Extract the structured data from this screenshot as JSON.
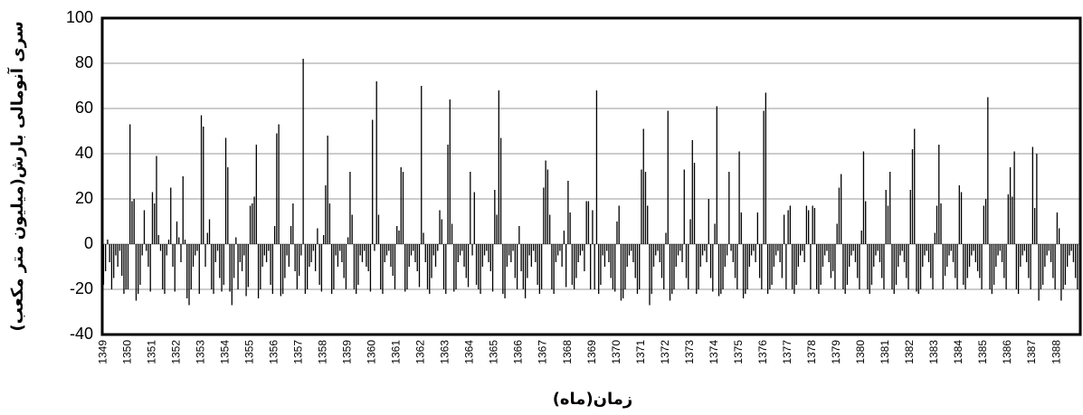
{
  "chart_data": {
    "type": "bar",
    "y_label": "سری آنومالی بارش(میلیون متر مکعب)",
    "x_label": "زمان(ماه)",
    "color": "#000000",
    "ylim": [
      -40,
      100
    ],
    "yticks": [
      -40,
      -20,
      0,
      20,
      40,
      60,
      80,
      100
    ],
    "grid": true,
    "categories": [
      "1349",
      null,
      null,
      null,
      null,
      null,
      null,
      null,
      null,
      null,
      null,
      null,
      "1350",
      null,
      null,
      null,
      null,
      null,
      null,
      null,
      null,
      null,
      null,
      null,
      "1351",
      null,
      null,
      null,
      null,
      null,
      null,
      null,
      null,
      null,
      null,
      null,
      "1352",
      null,
      null,
      null,
      null,
      null,
      null,
      null,
      null,
      null,
      null,
      null,
      "1353",
      null,
      null,
      null,
      null,
      null,
      null,
      null,
      null,
      null,
      null,
      null,
      "1354",
      null,
      null,
      null,
      null,
      null,
      null,
      null,
      null,
      null,
      null,
      null,
      "1355",
      null,
      null,
      null,
      null,
      null,
      null,
      null,
      null,
      null,
      null,
      null,
      "1356",
      null,
      null,
      null,
      null,
      null,
      null,
      null,
      null,
      null,
      null,
      null,
      "1357",
      null,
      null,
      null,
      null,
      null,
      null,
      null,
      null,
      null,
      null,
      null,
      "1358",
      null,
      null,
      null,
      null,
      null,
      null,
      null,
      null,
      null,
      null,
      null,
      "1359",
      null,
      null,
      null,
      null,
      null,
      null,
      null,
      null,
      null,
      null,
      null,
      "1360",
      null,
      null,
      null,
      null,
      null,
      null,
      null,
      null,
      null,
      null,
      null,
      "1361",
      null,
      null,
      null,
      null,
      null,
      null,
      null,
      null,
      null,
      null,
      null,
      "1362",
      null,
      null,
      null,
      null,
      null,
      null,
      null,
      null,
      null,
      null,
      null,
      "1363",
      null,
      null,
      null,
      null,
      null,
      null,
      null,
      null,
      null,
      null,
      null,
      "1364",
      null,
      null,
      null,
      null,
      null,
      null,
      null,
      null,
      null,
      null,
      null,
      "1365",
      null,
      null,
      null,
      null,
      null,
      null,
      null,
      null,
      null,
      null,
      null,
      "1366",
      null,
      null,
      null,
      null,
      null,
      null,
      null,
      null,
      null,
      null,
      null,
      "1367",
      null,
      null,
      null,
      null,
      null,
      null,
      null,
      null,
      null,
      null,
      null,
      "1368",
      null,
      null,
      null,
      null,
      null,
      null,
      null,
      null,
      null,
      null,
      null,
      "1369",
      null,
      null,
      null,
      null,
      null,
      null,
      null,
      null,
      null,
      null,
      null,
      "1370",
      null,
      null,
      null,
      null,
      null,
      null,
      null,
      null,
      null,
      null,
      null,
      "1371",
      null,
      null,
      null,
      null,
      null,
      null,
      null,
      null,
      null,
      null,
      null,
      "1372",
      null,
      null,
      null,
      null,
      null,
      null,
      null,
      null,
      null,
      null,
      null,
      "1373",
      null,
      null,
      null,
      null,
      null,
      null,
      null,
      null,
      null,
      null,
      null,
      "1374",
      null,
      null,
      null,
      null,
      null,
      null,
      null,
      null,
      null,
      null,
      null,
      "1375",
      null,
      null,
      null,
      null,
      null,
      null,
      null,
      null,
      null,
      null,
      null,
      "1376",
      null,
      null,
      null,
      null,
      null,
      null,
      null,
      null,
      null,
      null,
      null,
      "1377",
      null,
      null,
      null,
      null,
      null,
      null,
      null,
      null,
      null,
      null,
      null,
      "1378",
      null,
      null,
      null,
      null,
      null,
      null,
      null,
      null,
      null,
      null,
      null,
      "1379",
      null,
      null,
      null,
      null,
      null,
      null,
      null,
      null,
      null,
      null,
      null,
      "1380",
      null,
      null,
      null,
      null,
      null,
      null,
      null,
      null,
      null,
      null,
      null,
      "1381",
      null,
      null,
      null,
      null,
      null,
      null,
      null,
      null,
      null,
      null,
      null,
      "1382",
      null,
      null,
      null,
      null,
      null,
      null,
      null,
      null,
      null,
      null,
      null,
      "1383",
      null,
      null,
      null,
      null,
      null,
      null,
      null,
      null,
      null,
      null,
      null,
      "1384",
      null,
      null,
      null,
      null,
      null,
      null,
      null,
      null,
      null,
      null,
      null,
      "1385",
      null,
      null,
      null,
      null,
      null,
      null,
      null,
      null,
      null,
      null,
      null,
      "1386",
      null,
      null,
      null,
      null,
      null,
      null,
      null,
      null,
      null,
      null,
      null,
      "1387",
      null,
      null,
      null,
      null,
      null,
      null,
      null,
      null,
      null,
      null,
      null,
      "1388",
      null,
      null,
      null,
      null,
      null,
      null,
      null,
      null,
      null,
      null,
      null
    ],
    "values": [
      -18,
      -12,
      2,
      -8,
      -20,
      -15,
      -5,
      -10,
      -3,
      -14,
      -22,
      -20,
      -20,
      53,
      19,
      20,
      -25,
      -22,
      -18,
      -5,
      15,
      -3,
      -10,
      -21,
      23,
      18,
      39,
      4,
      -3,
      -20,
      -22,
      -5,
      2,
      25,
      -10,
      -21,
      10,
      3,
      -8,
      30,
      2,
      -24,
      -27,
      -20,
      -10,
      -5,
      -3,
      -22,
      57,
      52,
      -10,
      5,
      11,
      -20,
      -22,
      -8,
      -3,
      -15,
      -21,
      -18,
      47,
      34,
      -21,
      -27,
      -15,
      3,
      -20,
      -8,
      -12,
      -5,
      -23,
      -19,
      17,
      18,
      21,
      44,
      -24,
      -20,
      -10,
      -5,
      -8,
      -3,
      -18,
      -22,
      8,
      49,
      53,
      -23,
      -22,
      -15,
      -5,
      -10,
      8,
      18,
      -12,
      -20,
      -14,
      -5,
      82,
      -22,
      -20,
      -10,
      -8,
      -3,
      -12,
      7,
      -18,
      -21,
      4,
      26,
      48,
      18,
      -22,
      -20,
      -5,
      -10,
      -3,
      -8,
      -15,
      -20,
      3,
      32,
      13,
      -20,
      -22,
      -18,
      -5,
      -8,
      -3,
      -10,
      -12,
      -21,
      55,
      -3,
      72,
      13,
      -20,
      -22,
      -8,
      -5,
      -3,
      -10,
      -14,
      -20,
      8,
      6,
      34,
      32,
      -21,
      -20,
      -10,
      -5,
      -3,
      -8,
      -12,
      -19,
      70,
      5,
      -8,
      -20,
      -22,
      -15,
      -5,
      -10,
      -3,
      15,
      11,
      -20,
      -22,
      44,
      64,
      9,
      -21,
      -20,
      -8,
      -5,
      -3,
      -10,
      -15,
      -19,
      32,
      -5,
      23,
      -18,
      -20,
      -22,
      -10,
      -5,
      -3,
      -8,
      -12,
      -21,
      24,
      13,
      68,
      47,
      -22,
      -24,
      -10,
      -5,
      -8,
      -3,
      -15,
      -20,
      8,
      -12,
      -20,
      -24,
      -15,
      -5,
      -10,
      -3,
      -8,
      -18,
      -22,
      -20,
      25,
      37,
      33,
      13,
      -20,
      -22,
      -8,
      -5,
      -3,
      -10,
      6,
      -19,
      28,
      14,
      -18,
      -20,
      -15,
      -8,
      -5,
      -3,
      -12,
      19,
      19,
      -20,
      15,
      -20,
      68,
      -22,
      -18,
      -5,
      -10,
      -3,
      -8,
      -15,
      -20,
      -21,
      10,
      17,
      -25,
      -24,
      -20,
      -10,
      -5,
      -3,
      -8,
      -15,
      -22,
      -20,
      33,
      51,
      32,
      17,
      -27,
      -22,
      -10,
      -5,
      -3,
      -8,
      -15,
      -20,
      5,
      59,
      -25,
      -22,
      -20,
      -10,
      -5,
      -3,
      -8,
      33,
      -15,
      -20,
      11,
      46,
      36,
      -22,
      -20,
      -10,
      -5,
      -3,
      -8,
      20,
      -15,
      -21,
      9,
      61,
      -23,
      -22,
      -20,
      -10,
      -5,
      32,
      -3,
      -8,
      -15,
      -20,
      41,
      14,
      -24,
      -22,
      -20,
      -10,
      -5,
      -3,
      -8,
      14,
      -15,
      -20,
      59,
      67,
      -22,
      -20,
      -18,
      -10,
      -5,
      -3,
      -8,
      -15,
      13,
      -20,
      15,
      17,
      -20,
      -22,
      -18,
      -10,
      -5,
      -3,
      -8,
      17,
      15,
      -20,
      17,
      16,
      -20,
      -22,
      -18,
      -10,
      -5,
      -3,
      -8,
      -15,
      -12,
      -20,
      9,
      25,
      31,
      -20,
      -22,
      -18,
      -10,
      -5,
      -3,
      -8,
      -15,
      -20,
      6,
      41,
      19,
      -20,
      -22,
      -18,
      -10,
      -5,
      -3,
      -8,
      -15,
      -20,
      24,
      17,
      32,
      -20,
      -22,
      -18,
      -10,
      -5,
      -3,
      -8,
      -15,
      -20,
      24,
      42,
      51,
      -21,
      -22,
      -20,
      -10,
      -5,
      -3,
      -8,
      -15,
      -20,
      5,
      17,
      44,
      18,
      -20,
      -14,
      -10,
      -5,
      -3,
      -8,
      -15,
      -20,
      26,
      23,
      -18,
      -20,
      -15,
      -10,
      -5,
      -3,
      -8,
      -12,
      -15,
      -20,
      17,
      20,
      65,
      -20,
      -22,
      -18,
      -10,
      -5,
      -3,
      -8,
      -15,
      -20,
      22,
      34,
      21,
      41,
      -20,
      -22,
      -10,
      -5,
      -3,
      -8,
      -15,
      -20,
      43,
      16,
      40,
      -25,
      -20,
      -18,
      -10,
      -5,
      -3,
      -8,
      -15,
      -20,
      14,
      7,
      -25,
      -20,
      -18,
      -10,
      -5,
      -3,
      -8,
      -15,
      -20,
      -18
    ]
  }
}
